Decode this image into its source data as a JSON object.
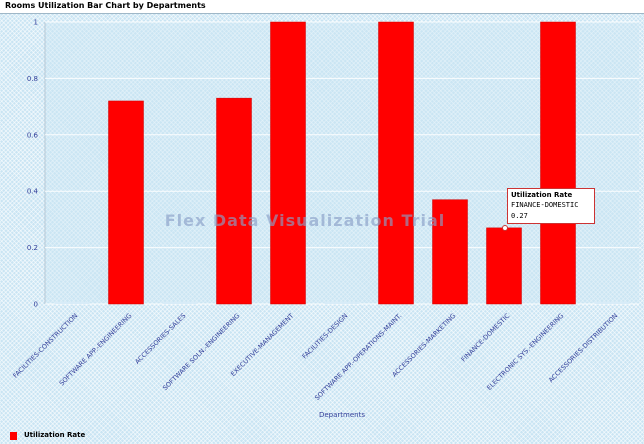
{
  "window": {
    "title": "Rooms Utilization Bar Chart by Departments"
  },
  "watermark": "Flex Data Visualization Trial",
  "chart_data": {
    "type": "bar",
    "title": "Rooms Utilization Bar Chart by Departments",
    "xlabel": "Departments",
    "ylabel": "",
    "ylim": [
      0,
      1
    ],
    "yticks": [
      "0",
      "0.2",
      "0.4",
      "0.6",
      "0.8",
      "1"
    ],
    "categories": [
      "FACILITIES-CONSTRUCTION",
      "SOFTWARE APP.-ENGINEERING",
      "ACCESSORIES-SALES",
      "SOFTWARE SOLN.-ENGINEERING",
      "EXECUTIVE-MANAGEMENT",
      "FACILITIES-DESIGN",
      "SOFTWARE APP.-OPERATIONS-MAINT.",
      "ACCESSORIES-MARKETING",
      "FINANCE-DOMESTIC",
      "ELECTRONIC SYS.-ENGINEERING",
      "ACCESSORIES-DISTRIBUTION"
    ],
    "series": [
      {
        "name": "Utilization Rate",
        "color": "#ff0000",
        "values": [
          0,
          0.72,
          0,
          0.73,
          1,
          0,
          1,
          0.37,
          0.27,
          1,
          0
        ]
      }
    ],
    "grid": true,
    "legend": "bottom-left"
  },
  "tooltip": {
    "title": "Utilization Rate",
    "category": "FINANCE-DOMESTIC",
    "value": "0.27"
  }
}
